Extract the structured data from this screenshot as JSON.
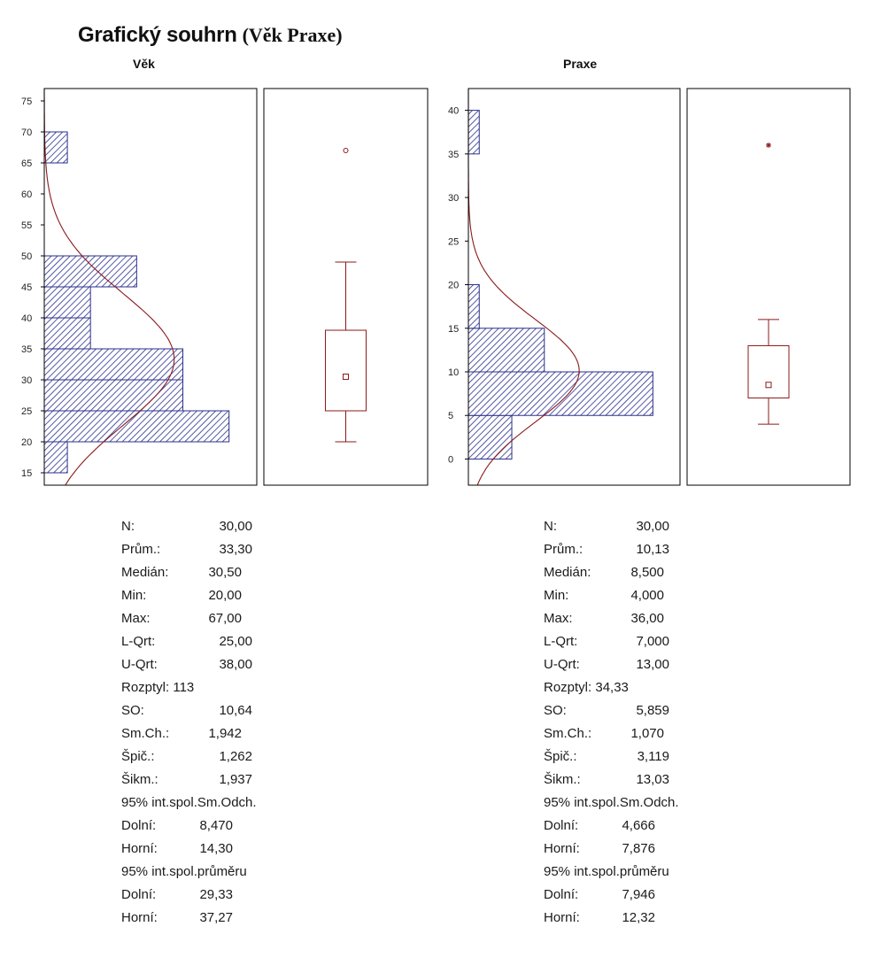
{
  "title": {
    "main": "Grafický souhrn",
    "sub": "(Věk Praxe)"
  },
  "colors": {
    "bar_fill": "#2a2f8c",
    "curve": "#8b1a1a",
    "box": "#8b1a1a",
    "frame": "#000000"
  },
  "chart_data": [
    {
      "type": "bar",
      "orientation": "horizontal",
      "title": "Věk",
      "ylim": [
        13,
        77
      ],
      "yticks": [
        15,
        20,
        25,
        30,
        35,
        40,
        45,
        50,
        55,
        60,
        65,
        70,
        75
      ],
      "bins": [
        {
          "from": 15,
          "to": 20,
          "count": 1
        },
        {
          "from": 20,
          "to": 25,
          "count": 8
        },
        {
          "from": 25,
          "to": 30,
          "count": 6
        },
        {
          "from": 30,
          "to": 35,
          "count": 6
        },
        {
          "from": 35,
          "to": 40,
          "count": 2
        },
        {
          "from": 40,
          "to": 45,
          "count": 2
        },
        {
          "from": 45,
          "to": 50,
          "count": 4
        },
        {
          "from": 65,
          "to": 70,
          "count": 1
        }
      ],
      "count_max": 9.2,
      "normal_curve": {
        "mean": 33.3,
        "sd": 10.64
      },
      "boxplot": {
        "min": 20,
        "q1": 25,
        "median": 30.5,
        "q3": 38,
        "whisker_high": 49,
        "outlier": 67,
        "outlier_marker": "circle"
      }
    },
    {
      "type": "bar",
      "orientation": "horizontal",
      "title": "Praxe",
      "ylim": [
        -3,
        42.5
      ],
      "yticks": [
        0,
        5,
        10,
        15,
        20,
        25,
        30,
        35,
        40
      ],
      "bins": [
        {
          "from": 0,
          "to": 5,
          "count": 4
        },
        {
          "from": 5,
          "to": 10,
          "count": 17
        },
        {
          "from": 10,
          "to": 15,
          "count": 7
        },
        {
          "from": 15,
          "to": 20,
          "count": 1
        },
        {
          "from": 35,
          "to": 40,
          "count": 1
        }
      ],
      "count_max": 19.5,
      "normal_curve": {
        "mean": 10.13,
        "sd": 5.859
      },
      "boxplot": {
        "min": 4,
        "q1": 7,
        "median": 8.5,
        "q3": 13,
        "whisker_high": 16,
        "outlier": 36,
        "outlier_marker": "asterisk"
      }
    }
  ],
  "stats": {
    "left": {
      "n_label": "N:",
      "n_value": "30,00",
      "mean_label": "Prům.:",
      "mean_value": "33,30",
      "median_label": "Medián:",
      "median_value": "30,50",
      "min_label": "Min:",
      "min_value": "20,00",
      "max_label": "Max:",
      "max_value": "67,00",
      "lqrt_label": "L-Qrt:",
      "lqrt_value": "25,00",
      "uqrt_label": "U-Qrt:",
      "uqrt_value": "38,00",
      "variance_text": "Rozptyl: 113",
      "sd_label": "SO:",
      "sd_value": "10,64",
      "se_label": "Sm.Ch.:",
      "se_value": "1,942",
      "kurt_label": "Špič.:",
      "kurt_value": "1,262",
      "skew_label": "Šikm.:",
      "skew_value": "1,937",
      "ci_sd_heading": "95% int.spol.Sm.Odch.",
      "ci_sd_lower_label": "Dolní:",
      "ci_sd_lower_value": "8,470",
      "ci_sd_upper_label": "Horní:",
      "ci_sd_upper_value": "14,30",
      "ci_mean_heading": "95% int.spol.průměru",
      "ci_mean_lower_label": "Dolní:",
      "ci_mean_lower_value": "29,33",
      "ci_mean_upper_label": "Horní:",
      "ci_mean_upper_value": "37,27"
    },
    "right": {
      "n_label": "N:",
      "n_value": "30,00",
      "mean_label": "Prům.:",
      "mean_value": "10,13",
      "median_label": "Medián:",
      "median_value": "8,500",
      "min_label": "Min:",
      "min_value": "4,000",
      "max_label": "Max:",
      "max_value": "36,00",
      "lqrt_label": "L-Qrt:",
      "lqrt_value": "7,000",
      "uqrt_label": "U-Qrt:",
      "uqrt_value": "13,00",
      "variance_text": "Rozptyl: 34,33",
      "sd_label": "SO:",
      "sd_value": "5,859",
      "se_label": "Sm.Ch.:",
      "se_value": "1,070",
      "kurt_label": "Špič.:",
      "kurt_value": "3,119",
      "skew_label": "Šikm.:",
      "skew_value": "13,03",
      "ci_sd_heading": "95% int.spol.Sm.Odch.",
      "ci_sd_lower_label": "Dolní:",
      "ci_sd_lower_value": "4,666",
      "ci_sd_upper_label": "Horní:",
      "ci_sd_upper_value": "7,876",
      "ci_mean_heading": "95% int.spol.průměru",
      "ci_mean_lower_label": "Dolní:",
      "ci_mean_lower_value": "7,946",
      "ci_mean_upper_label": "Horní:",
      "ci_mean_upper_value": "12,32"
    }
  }
}
